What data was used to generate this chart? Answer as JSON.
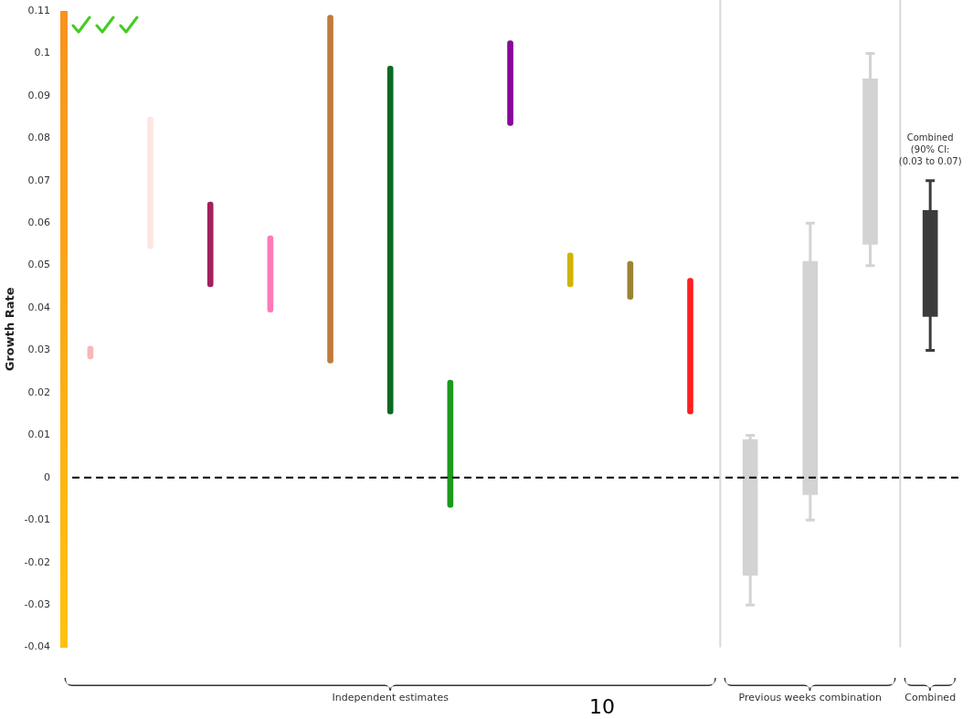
{
  "chart_data": {
    "type": "bar",
    "ylabel": "Growth Rate",
    "categories": [
      null,
      null,
      null,
      null,
      null,
      null,
      null,
      null,
      null,
      null,
      null,
      null,
      null,
      null,
      null
    ],
    "series": [
      {
        "colors": [
          "#f6b8b8",
          "#fde6e2",
          "#a3215e",
          "#ff7ab8",
          "#c07a3a",
          "#0b6a22",
          "#1c9a1c",
          "#88089a",
          "#d0b400",
          "#9a8434",
          "#ff1f1f",
          null,
          null,
          null,
          null
        ],
        "base": [
          0.028,
          0.054,
          0.045,
          0.039,
          0.027,
          0.015,
          -0.007,
          0.083,
          0.045,
          0.042,
          0.015,
          null,
          null,
          null,
          null
        ],
        "values": [
          0.003,
          0.031,
          0.02,
          0.018,
          0.082,
          0.082,
          0.03,
          0.02,
          0.008,
          0.009,
          0.032,
          null,
          null,
          null,
          null
        ]
      },
      {
        "color": "#d3d3d3",
        "base": [
          null,
          null,
          null,
          null,
          null,
          null,
          null,
          null,
          null,
          null,
          null,
          -0.023,
          -0.004,
          0.055,
          null
        ],
        "values": [
          null,
          null,
          null,
          null,
          null,
          null,
          null,
          null,
          null,
          null,
          null,
          0.032,
          0.055,
          0.039,
          null
        ],
        "errors": [
          null,
          null,
          null,
          null,
          null,
          null,
          null,
          null,
          null,
          null,
          null,
          [
            -0.03,
            0.01
          ],
          [
            -0.01,
            0.06
          ],
          [
            0.05,
            0.1
          ],
          null
        ]
      },
      {
        "color": "#3c3c3c",
        "base": [
          null,
          null,
          null,
          null,
          null,
          null,
          null,
          null,
          null,
          null,
          null,
          null,
          null,
          null,
          0.038
        ],
        "values": [
          null,
          null,
          null,
          null,
          null,
          null,
          null,
          null,
          null,
          null,
          null,
          null,
          null,
          null,
          0.025
        ],
        "errors": [
          null,
          null,
          null,
          null,
          null,
          null,
          null,
          null,
          null,
          null,
          null,
          null,
          null,
          null,
          [
            0.03,
            0.07
          ]
        ]
      }
    ],
    "ylim": [
      -0.04,
      0.11
    ],
    "yticks": [
      0.11,
      0.1,
      0.09,
      0.08,
      0.07,
      0.06,
      0.05,
      0.04,
      0.03,
      0.02,
      0.01,
      0,
      -0.01,
      -0.02,
      -0.03,
      -0.04
    ],
    "ref_lines": [
      {
        "axis": "y",
        "value": 0,
        "color": "#000000",
        "line_style": "dashed"
      }
    ],
    "annotations": [
      "Independent estimates",
      "Previous weeks combination",
      "Combined",
      "10",
      "Combined\n(90% CI:\n(0.03 to 0.07)"
    ],
    "grid": false,
    "legend": false
  }
}
